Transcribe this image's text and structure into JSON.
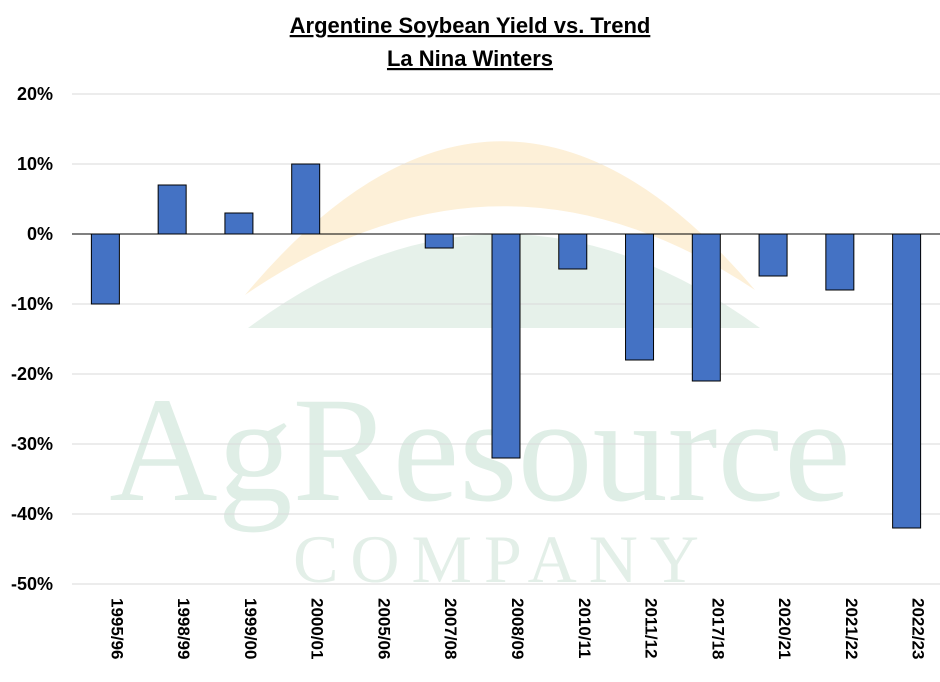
{
  "watermark": {
    "brand": "AgResource",
    "sub": "COMPANY"
  },
  "chart_data": {
    "type": "bar",
    "title": "Argentine Soybean Yield vs. Trend",
    "subtitle": "La Nina Winters",
    "categories": [
      "1995/96",
      "1998/99",
      "1999/00",
      "2000/01",
      "2005/06",
      "2007/08",
      "2008/09",
      "2010/11",
      "2011/12",
      "2017/18",
      "2020/21",
      "2021/22",
      "2022/23"
    ],
    "values": [
      -10,
      7,
      3,
      10,
      0,
      -2,
      -32,
      -5,
      -18,
      -21,
      -6,
      -8,
      -42
    ],
    "ylim": [
      -50,
      20
    ],
    "yticks": [
      20,
      10,
      0,
      -10,
      -20,
      -30,
      -40,
      -50
    ],
    "ytick_labels": [
      "20%",
      "10%",
      "0%",
      "-10%",
      "-20%",
      "-30%",
      "-40%",
      "-50%"
    ],
    "grid": true,
    "colors": {
      "bar": "#4472c4",
      "bar_edge": "#000000",
      "grid": "#d9d9d9",
      "watermark_sun": "#fdf0d8",
      "watermark_hill": "#e6f1ea"
    }
  }
}
